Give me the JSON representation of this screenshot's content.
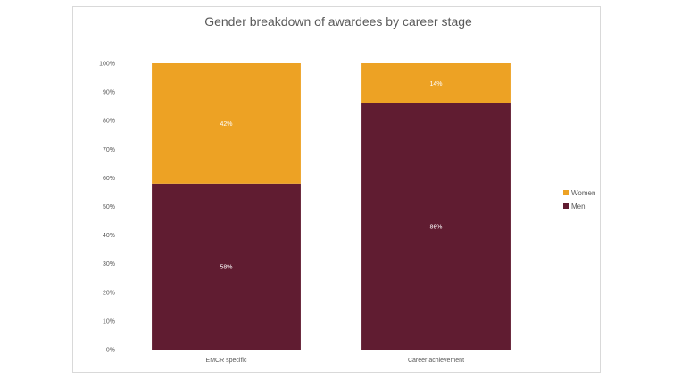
{
  "chart_data": {
    "type": "bar",
    "stacked": true,
    "title": "Gender breakdown of awardees by career stage",
    "categories": [
      "EMCR specific",
      "Career achievement"
    ],
    "series": [
      {
        "name": "Men",
        "values": [
          58,
          86
        ],
        "labels": [
          "58%",
          "86%"
        ],
        "color": "#601C31"
      },
      {
        "name": "Women",
        "values": [
          42,
          14
        ],
        "labels": [
          "42%",
          "14%"
        ],
        "color": "#EDA224"
      }
    ],
    "ylim": [
      0,
      100
    ],
    "yticks": [
      "0%",
      "10%",
      "20%",
      "30%",
      "40%",
      "50%",
      "60%",
      "70%",
      "80%",
      "90%",
      "100%"
    ],
    "legend_position": "right",
    "legend_order": [
      "Women",
      "Men"
    ],
    "grid": false
  }
}
